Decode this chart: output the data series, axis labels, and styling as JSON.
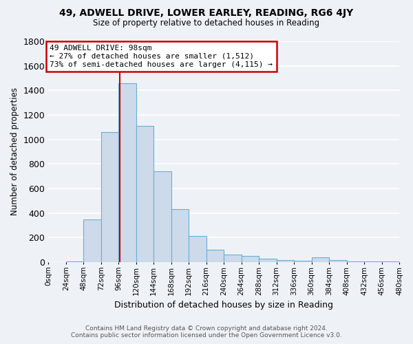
{
  "title": "49, ADWELL DRIVE, LOWER EARLEY, READING, RG6 4JY",
  "subtitle": "Size of property relative to detached houses in Reading",
  "xlabel": "Distribution of detached houses by size in Reading",
  "ylabel": "Number of detached properties",
  "bin_edges": [
    0,
    24,
    48,
    72,
    96,
    120,
    144,
    168,
    192,
    216,
    240,
    264,
    288,
    312,
    336,
    360,
    384,
    408,
    432,
    456,
    480
  ],
  "bar_heights": [
    0,
    5,
    350,
    1060,
    1460,
    1110,
    740,
    430,
    215,
    100,
    60,
    50,
    30,
    15,
    10,
    40,
    15,
    5,
    3,
    3
  ],
  "bar_color": "#ccdaea",
  "bar_edgecolor": "#6aaed6",
  "property_size": 98,
  "vline_color": "#cc0000",
  "annotation_text": "49 ADWELL DRIVE: 98sqm\n← 27% of detached houses are smaller (1,512)\n73% of semi-detached houses are larger (4,115) →",
  "annotation_boxcolor": "white",
  "annotation_edgecolor": "#cc0000",
  "ylim": [
    0,
    1800
  ],
  "yticks": [
    0,
    200,
    400,
    600,
    800,
    1000,
    1200,
    1400,
    1600,
    1800
  ],
  "xtick_labels": [
    "0sqm",
    "24sqm",
    "48sqm",
    "72sqm",
    "96sqm",
    "120sqm",
    "144sqm",
    "168sqm",
    "192sqm",
    "216sqm",
    "240sqm",
    "264sqm",
    "288sqm",
    "312sqm",
    "336sqm",
    "360sqm",
    "384sqm",
    "408sqm",
    "432sqm",
    "456sqm",
    "480sqm"
  ],
  "background_color": "#eef2f7",
  "grid_color": "white",
  "footer_line1": "Contains HM Land Registry data © Crown copyright and database right 2024.",
  "footer_line2": "Contains public sector information licensed under the Open Government Licence v3.0."
}
